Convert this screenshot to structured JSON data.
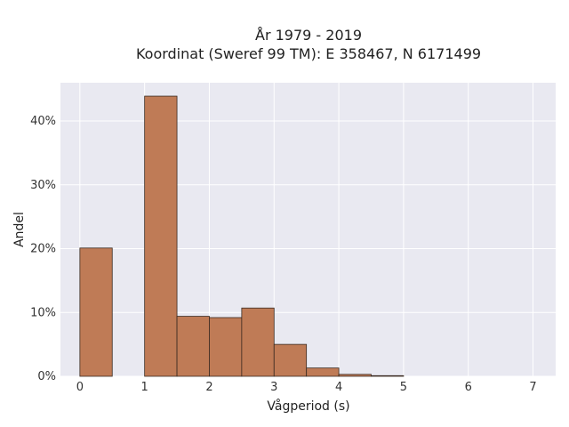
{
  "chart_data": {
    "type": "bar",
    "title_line1": "År 1979 - 2019",
    "title_line2": "Koordinat (Sweref 99 TM): E 358467, N 6171499",
    "xlabel": "Vågperiod (s)",
    "ylabel": "Andel",
    "xlim": [
      -0.3,
      7.35
    ],
    "ylim": [
      0,
      46
    ],
    "x_ticks": [
      0,
      1,
      2,
      3,
      4,
      5,
      6,
      7
    ],
    "y_ticks": [
      0,
      10,
      20,
      30,
      40
    ],
    "y_tick_labels": [
      "0%",
      "10%",
      "20%",
      "30%",
      "40%"
    ],
    "grid": true,
    "bar_color": "#bf7b56",
    "bar_edge_color": "#3a2a20",
    "plot_background": "#e9e9f1",
    "bins": [
      {
        "x0": 0.0,
        "x1": 0.5,
        "value": 20.1
      },
      {
        "x0": 0.5,
        "x1": 1.0,
        "value": 0.0
      },
      {
        "x0": 1.0,
        "x1": 1.5,
        "value": 43.9
      },
      {
        "x0": 1.5,
        "x1": 2.0,
        "value": 9.4
      },
      {
        "x0": 2.0,
        "x1": 2.5,
        "value": 9.2
      },
      {
        "x0": 2.5,
        "x1": 3.0,
        "value": 10.7
      },
      {
        "x0": 3.0,
        "x1": 3.5,
        "value": 5.0
      },
      {
        "x0": 3.5,
        "x1": 4.0,
        "value": 1.3
      },
      {
        "x0": 4.0,
        "x1": 4.5,
        "value": 0.3
      },
      {
        "x0": 4.5,
        "x1": 5.0,
        "value": 0.1
      }
    ]
  }
}
